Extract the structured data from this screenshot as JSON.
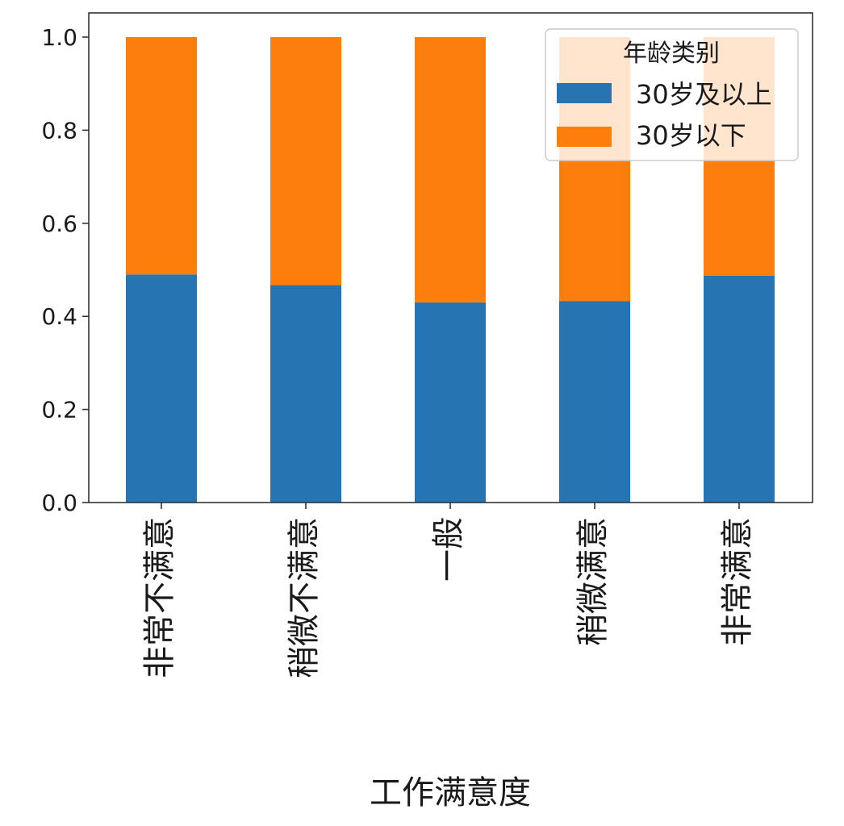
{
  "chart_data": {
    "type": "bar",
    "stacked": true,
    "categories": [
      "非常不满意",
      "稍微不满意",
      "一般",
      "稍微满意",
      "非常满意"
    ],
    "series": [
      {
        "name": "30岁及以上",
        "values": [
          0.49,
          0.467,
          0.43,
          0.433,
          0.487
        ]
      },
      {
        "name": "30岁以下",
        "values": [
          0.51,
          0.533,
          0.57,
          0.567,
          0.513
        ]
      }
    ],
    "colors": [
      "#2674b2",
      "#fe7e0d"
    ],
    "xlabel": "工作满意度",
    "ylabel": "",
    "ylim": [
      0,
      1.05
    ],
    "yticks": [
      "0.0",
      "0.2",
      "0.4",
      "0.6",
      "0.8",
      "1.0"
    ],
    "legend": {
      "title": "年龄类别",
      "placement": "upper-right"
    },
    "grid": false
  }
}
